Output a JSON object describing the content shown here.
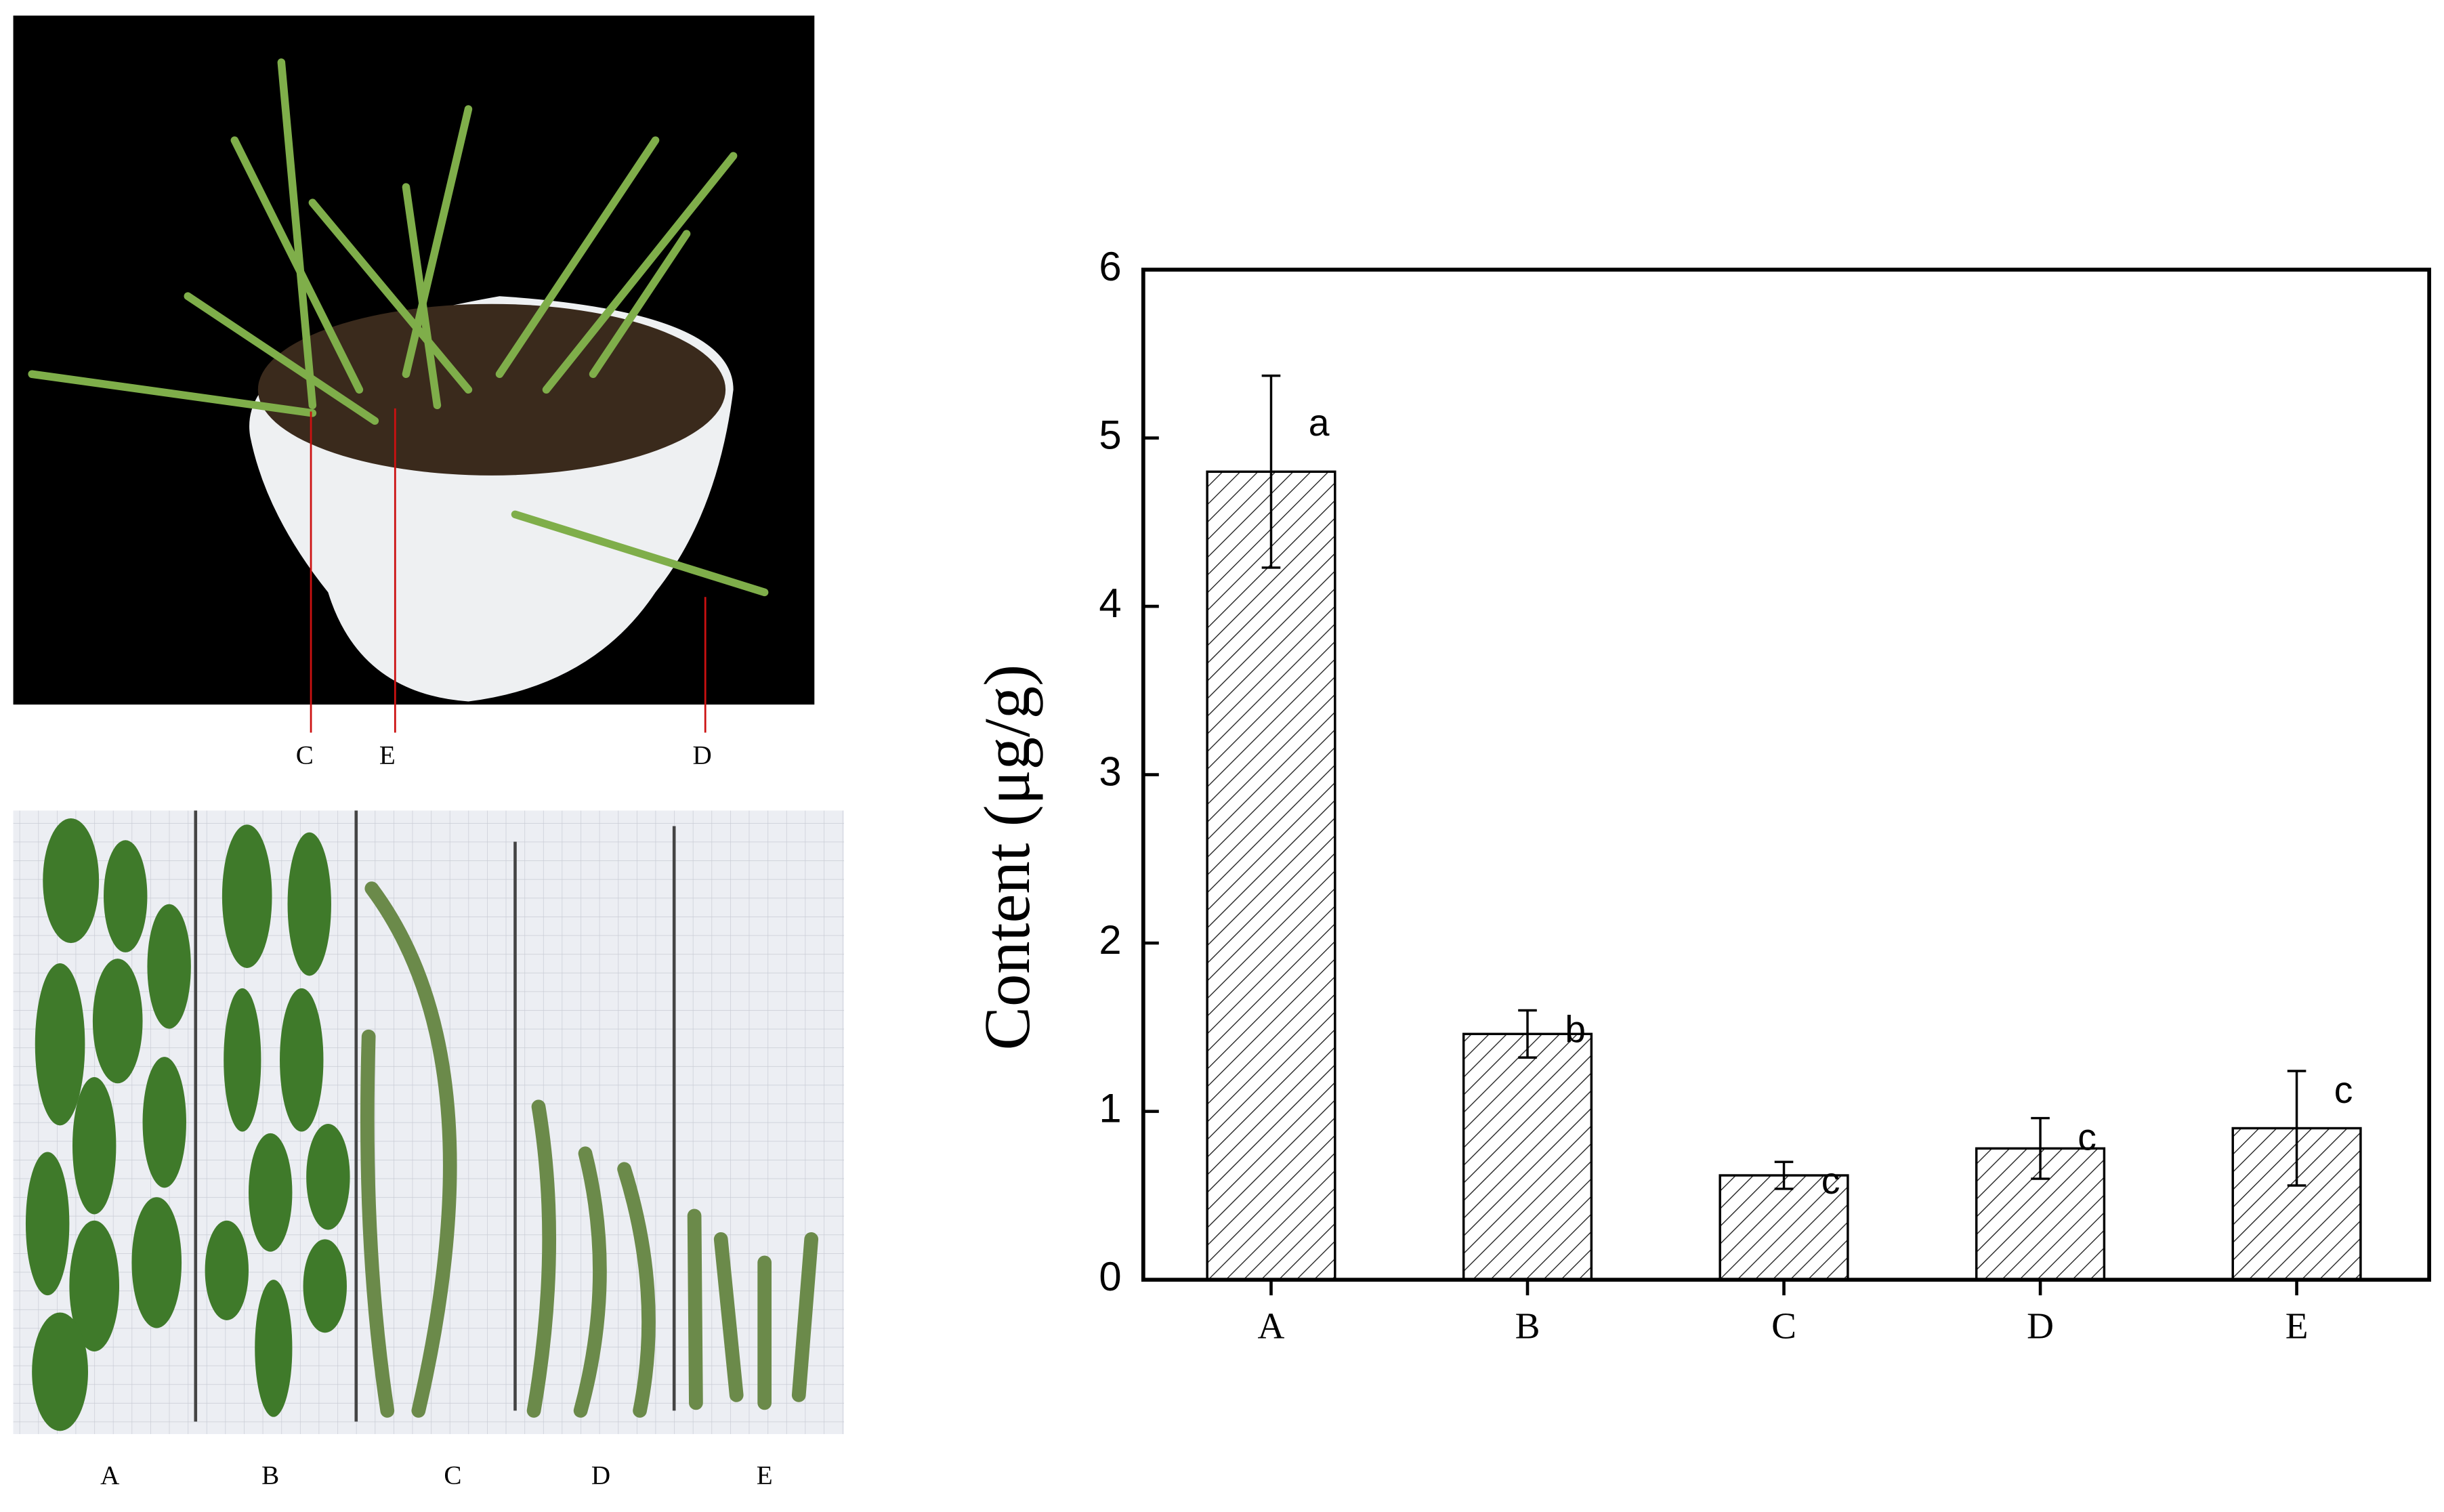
{
  "chart_data": {
    "type": "bar",
    "ylabel": "Content (μg/g)",
    "categories": [
      "A",
      "B",
      "C",
      "D",
      "E"
    ],
    "values": [
      4.8,
      1.46,
      0.62,
      0.78,
      0.9
    ],
    "errors": [
      0.57,
      0.14,
      0.08,
      0.18,
      0.34
    ],
    "annotations": [
      "a",
      "b",
      "c",
      "c",
      "c"
    ],
    "color": "#ffffff",
    "ylim": [
      0,
      6
    ],
    "yticks": [
      0,
      1,
      2,
      3,
      4,
      5,
      6
    ]
  },
  "photo_labels": {
    "top": [
      "C",
      "E",
      "D"
    ],
    "bottom": [
      "A",
      "B",
      "C",
      "D",
      "E"
    ]
  }
}
